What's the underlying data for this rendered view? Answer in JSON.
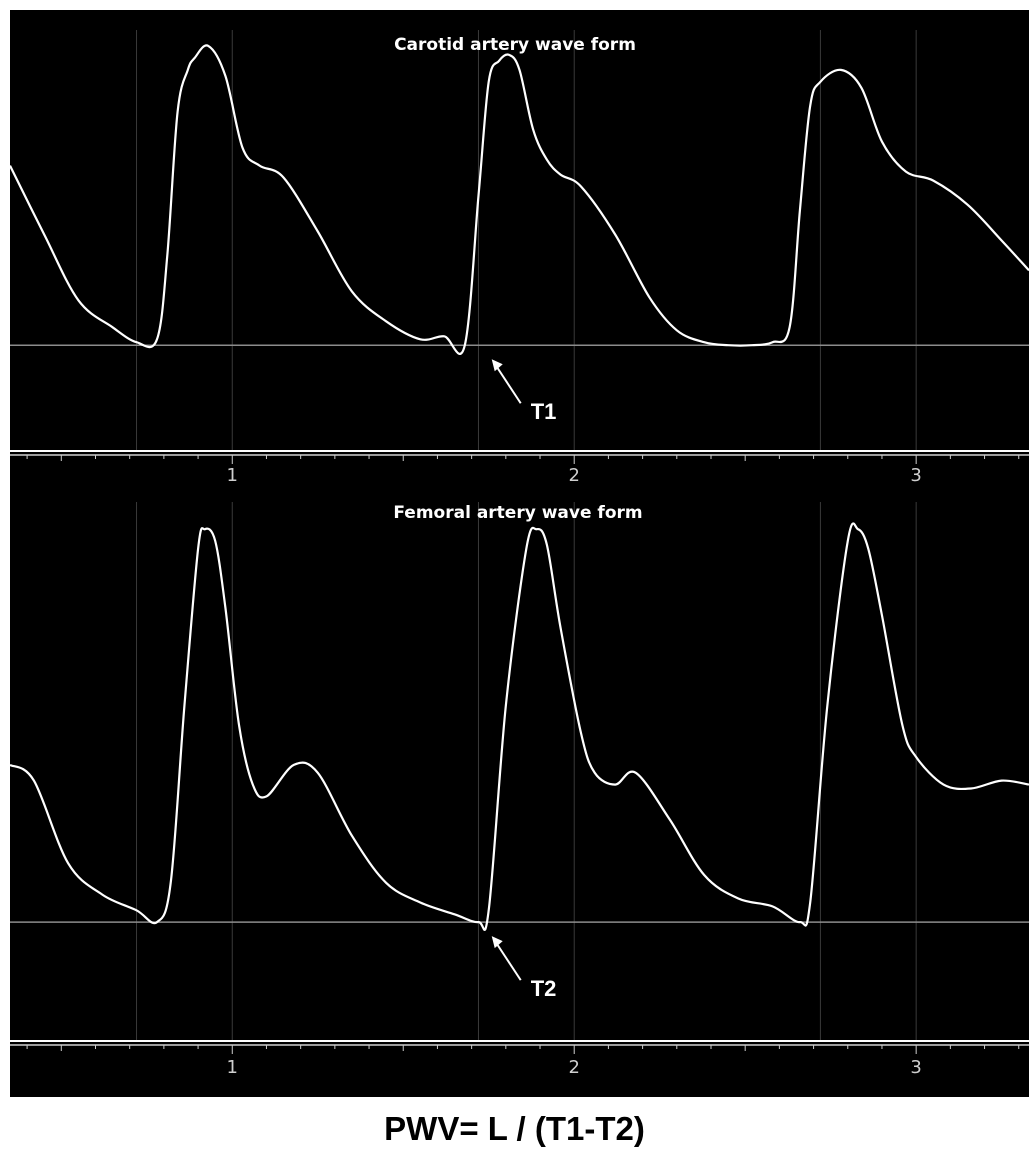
{
  "formula": "PWV= L / (T1-T2)",
  "colors": {
    "background": "#000000",
    "trace": "#ffffff",
    "baseline": "#8c8c8c",
    "grid": "#3a3a3a",
    "axis_text": "#cfcfcf",
    "page": "#ffffff"
  },
  "chart_data": [
    {
      "type": "line",
      "title": "Carotid artery wave form",
      "xlabel": "",
      "ylabel": "",
      "xlim": [
        0.35,
        3.33
      ],
      "ylim": [
        -0.35,
        1.12
      ],
      "x_ticks": [
        1,
        2,
        3
      ],
      "x_tick_labels": [
        "1",
        "2",
        "3"
      ],
      "grid": true,
      "baseline_y": 0,
      "series": [
        {
          "name": "",
          "x": [
            0.35,
            0.45,
            0.55,
            0.65,
            0.72,
            0.78,
            0.81,
            0.84,
            0.87,
            0.89,
            0.93,
            0.98,
            1.03,
            1.08,
            1.15,
            1.25,
            1.35,
            1.45,
            1.55,
            1.62,
            1.68,
            1.72,
            1.75,
            1.78,
            1.81,
            1.84,
            1.88,
            1.92,
            1.96,
            2.02,
            2.12,
            2.22,
            2.3,
            2.38,
            2.45,
            2.52,
            2.58,
            2.63,
            2.66,
            2.69,
            2.72,
            2.78,
            2.84,
            2.9,
            2.97,
            3.05,
            3.15,
            3.25,
            3.33
          ],
          "y": [
            0.6,
            0.37,
            0.15,
            0.06,
            0.01,
            0.02,
            0.3,
            0.78,
            0.92,
            0.96,
            1.0,
            0.9,
            0.66,
            0.6,
            0.56,
            0.38,
            0.18,
            0.08,
            0.02,
            0.03,
            0.0,
            0.5,
            0.88,
            0.95,
            0.97,
            0.92,
            0.72,
            0.62,
            0.57,
            0.53,
            0.37,
            0.16,
            0.05,
            0.01,
            0.0,
            0.0,
            0.01,
            0.06,
            0.45,
            0.8,
            0.88,
            0.92,
            0.86,
            0.68,
            0.58,
            0.55,
            0.47,
            0.35,
            0.25
          ]
        }
      ],
      "annotations": [
        {
          "text": "T1",
          "x": 1.75,
          "y": 0
        }
      ]
    },
    {
      "type": "line",
      "title": "Femoral artery wave form",
      "xlabel": "",
      "ylabel": "",
      "xlim": [
        0.35,
        3.33
      ],
      "ylim": [
        -0.3,
        1.12
      ],
      "x_ticks": [
        1,
        2,
        3
      ],
      "x_tick_labels": [
        "1",
        "2",
        "3"
      ],
      "grid": true,
      "baseline_y": 0,
      "series": [
        {
          "name": "",
          "x": [
            0.35,
            0.42,
            0.52,
            0.62,
            0.72,
            0.78,
            0.82,
            0.86,
            0.9,
            0.92,
            0.95,
            0.98,
            1.02,
            1.06,
            1.1,
            1.18,
            1.25,
            1.35,
            1.45,
            1.55,
            1.65,
            1.72,
            1.75,
            1.8,
            1.86,
            1.89,
            1.92,
            1.96,
            2.02,
            2.06,
            2.12,
            2.18,
            2.28,
            2.38,
            2.48,
            2.58,
            2.66,
            2.69,
            2.74,
            2.8,
            2.83,
            2.86,
            2.9,
            2.96,
            3.0,
            3.08,
            3.16,
            3.25,
            3.33
          ],
          "y": [
            0.4,
            0.36,
            0.15,
            0.07,
            0.03,
            0.0,
            0.1,
            0.55,
            0.95,
            1.0,
            0.97,
            0.8,
            0.5,
            0.35,
            0.32,
            0.4,
            0.38,
            0.22,
            0.1,
            0.05,
            0.02,
            0.0,
            0.03,
            0.55,
            0.95,
            1.0,
            0.96,
            0.75,
            0.48,
            0.38,
            0.35,
            0.38,
            0.26,
            0.12,
            0.06,
            0.04,
            0.0,
            0.05,
            0.55,
            0.97,
            1.0,
            0.95,
            0.78,
            0.5,
            0.42,
            0.35,
            0.34,
            0.36,
            0.35
          ]
        }
      ],
      "annotations": [
        {
          "text": "T2",
          "x": 1.75,
          "y": 0
        }
      ]
    }
  ]
}
